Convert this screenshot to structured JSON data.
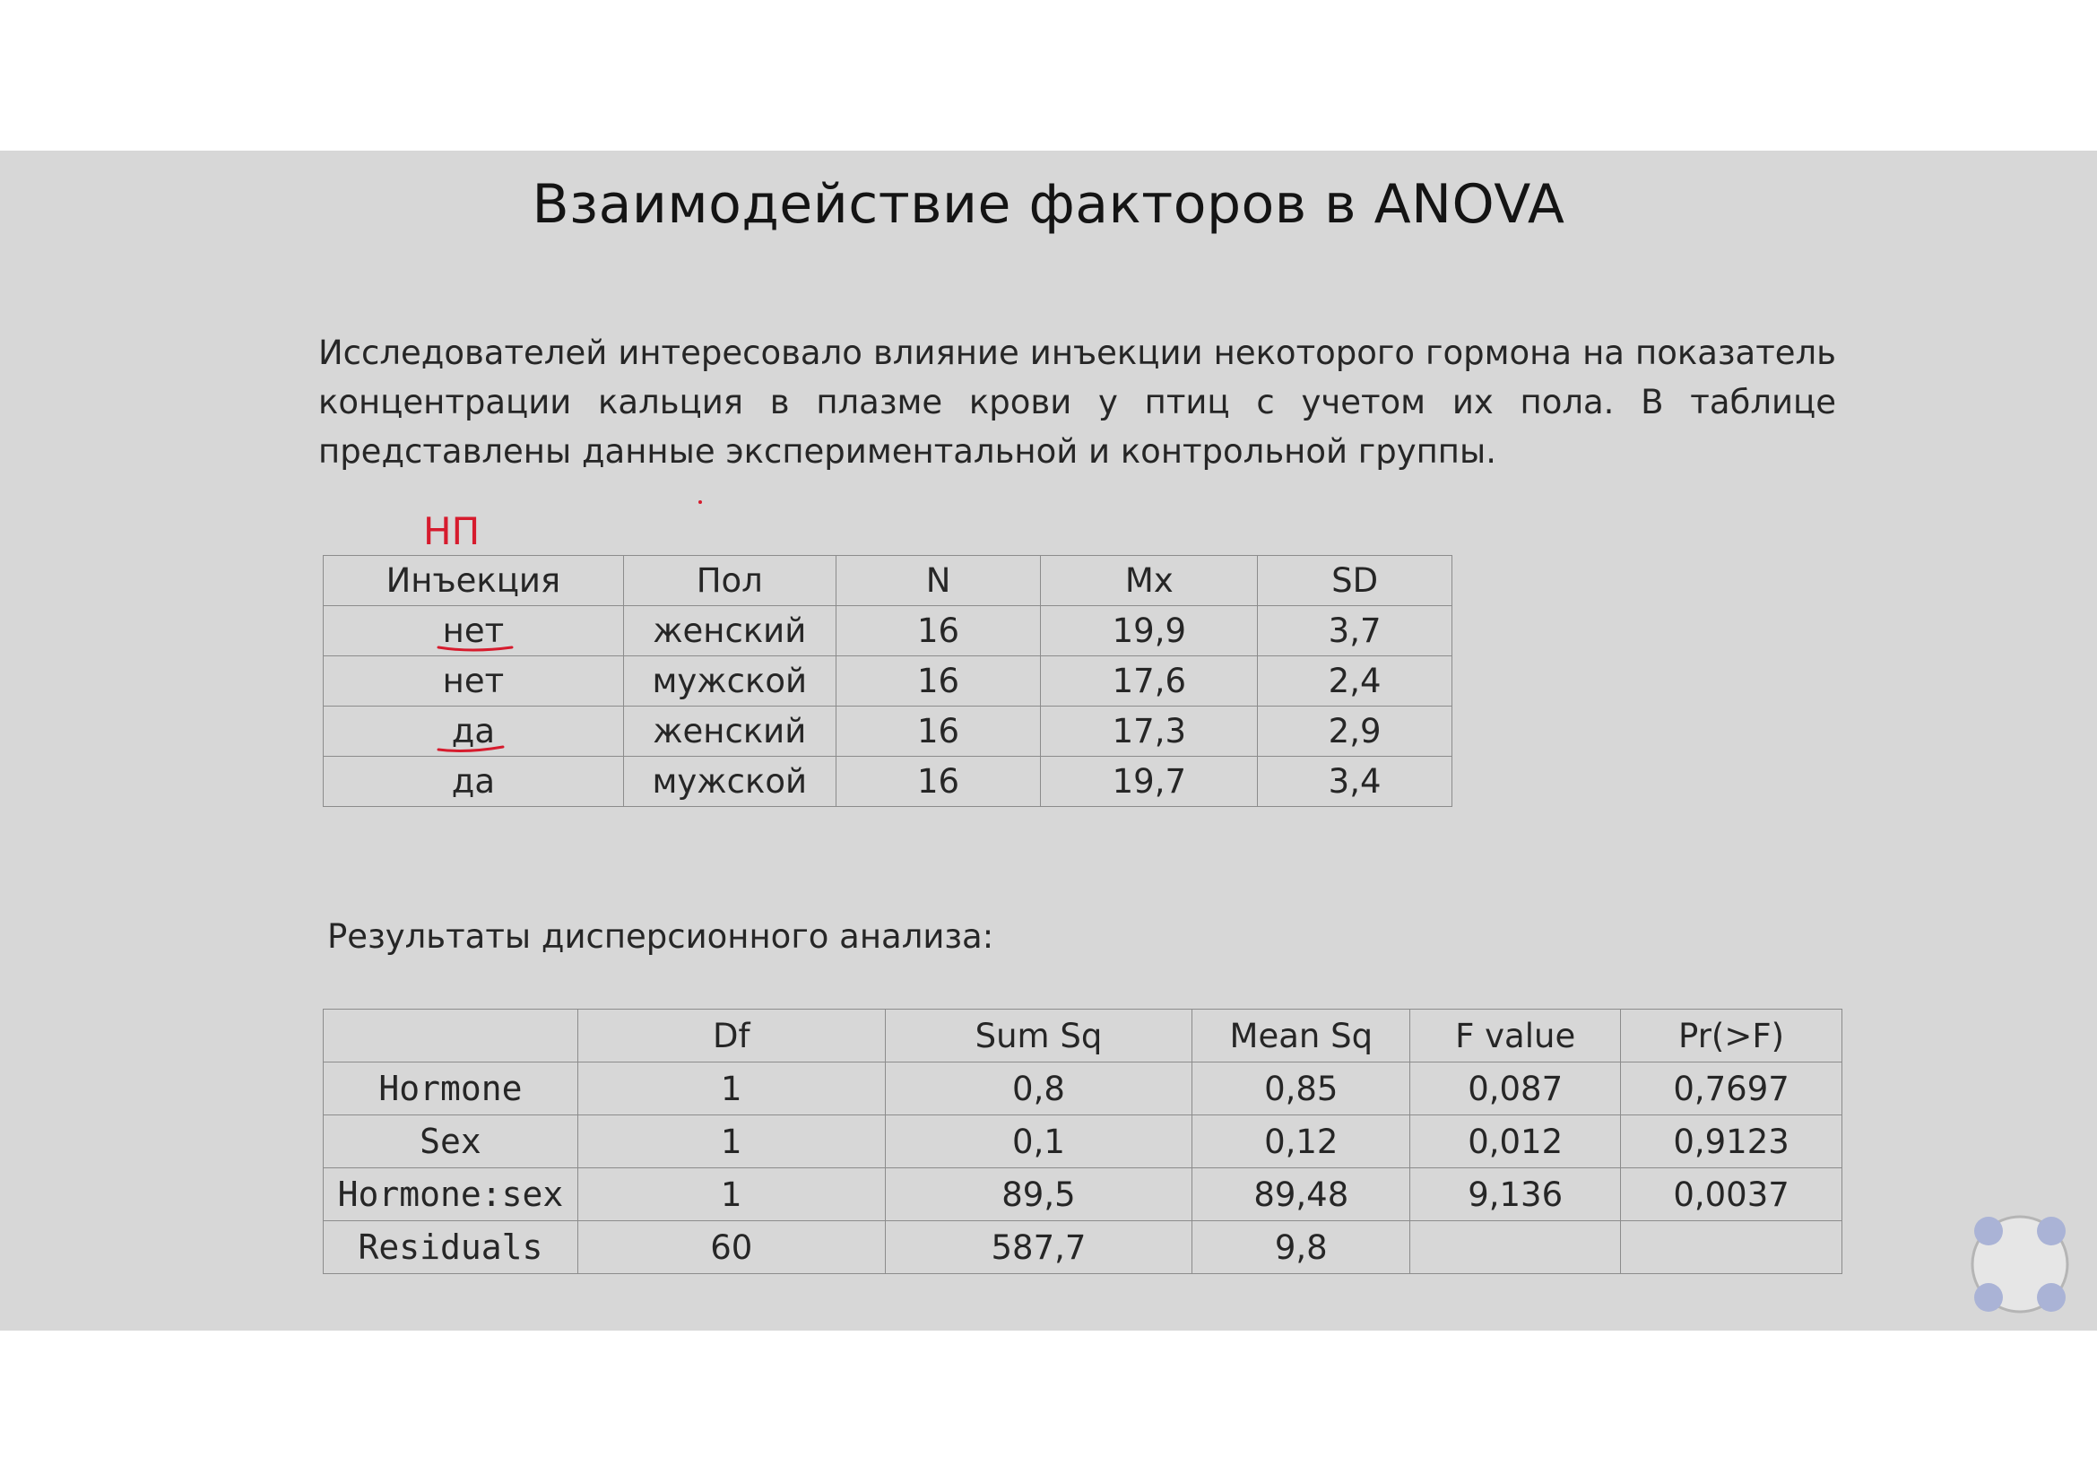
{
  "slide": {
    "title": "Взаимодействие факторов в ANOVA",
    "intro": "Исследователей интересовало влияние инъекции некоторого гормона на показатель концентрации кальция в плазме крови у птиц с учетом их пола.  В таблице представлены данные экспериментальной и контрольной группы.",
    "annotation": "НП",
    "annotation_color": "#d61b2d",
    "background": "#d7d7d7",
    "descriptive_table": {
      "headers": [
        "Инъекция",
        "Пол",
        "N",
        "Mx",
        "SD"
      ],
      "rows": [
        [
          "нет",
          "женский",
          "16",
          "19,9",
          "3,7"
        ],
        [
          "нет",
          "мужской",
          "16",
          "17,6",
          "2,4"
        ],
        [
          "да",
          "женский",
          "16",
          "17,3",
          "2,9"
        ],
        [
          "да",
          "мужской",
          "16",
          "19,7",
          "3,4"
        ]
      ],
      "underlined_cells": [
        "row 0, Инъекция",
        "row 2, Инъекция"
      ]
    },
    "results_heading": "Результаты дисперсионного анализа:",
    "anova_table": {
      "headers": [
        "",
        "Df",
        "Sum Sq",
        "Mean Sq",
        "F value",
        "Pr(>F)"
      ],
      "rows": [
        [
          "Hormone",
          "1",
          "0,8",
          "0,85",
          "0,087",
          "0,7697"
        ],
        [
          "Sex",
          "1",
          "0,1",
          "0,12",
          "0,012",
          "0,9123"
        ],
        [
          "Hormone:sex",
          "1",
          "89,5",
          "89,48",
          "9,136",
          "0,0037"
        ],
        [
          "Residuals",
          "60",
          "587,7",
          "9,8",
          "",
          ""
        ]
      ]
    }
  },
  "overlay_widget": {
    "icon": "four-dot-control-icon",
    "dot_color": "#aab3d6"
  }
}
